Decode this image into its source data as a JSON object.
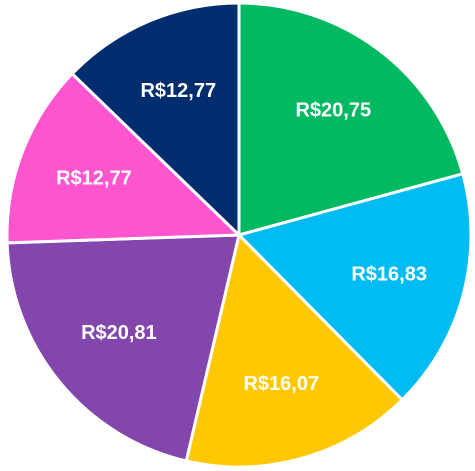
{
  "chart_data": {
    "type": "pie",
    "values": [
      20.75,
      16.83,
      16.07,
      20.81,
      12.77,
      12.77
    ],
    "value_labels": [
      "R$20,75",
      "R$16,83",
      "R$16,07",
      "R$20,81",
      "R$12,77",
      "R$12,77"
    ],
    "colors": [
      "#00b960",
      "#00bcf2",
      "#ffc800",
      "#8246ac",
      "#ff55cf",
      "#002d6e"
    ]
  }
}
